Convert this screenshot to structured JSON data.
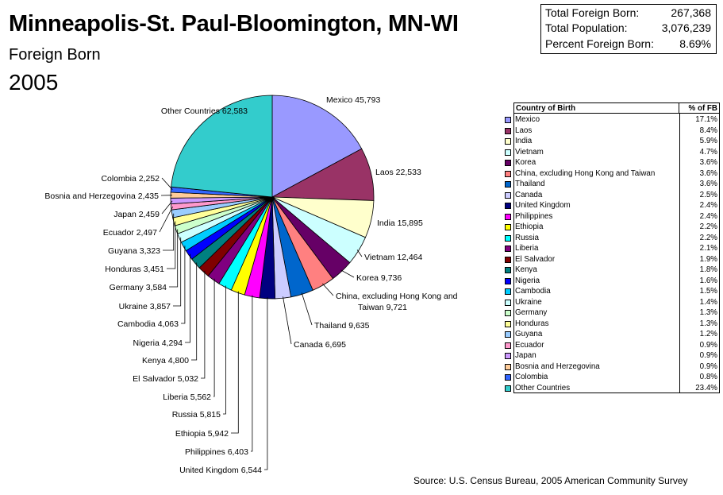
{
  "header": {
    "title": "Minneapolis-St. Paul-Bloomington, MN-WI",
    "subtitle": "Foreign Born",
    "year": "2005"
  },
  "stats": [
    {
      "label": "Total Foreign Born:",
      "value": "267,368"
    },
    {
      "label": "Total Population:",
      "value": "3,076,239"
    },
    {
      "label": "Percent Foreign Born:",
      "value": "8.69%"
    }
  ],
  "source": "Source: U.S. Census Bureau, 2005 American Community Survey",
  "table": {
    "col1": "Country of Birth",
    "col2": "% of FB",
    "rows": [
      {
        "name": "Mexico",
        "pct": "17.1%"
      },
      {
        "name": "Laos",
        "pct": "8.4%"
      },
      {
        "name": "India",
        "pct": "5.9%"
      },
      {
        "name": "Vietnam",
        "pct": "4.7%"
      },
      {
        "name": "Korea",
        "pct": "3.6%"
      },
      {
        "name": "China, excluding Hong Kong and Taiwan",
        "pct": "3.6%"
      },
      {
        "name": "Thailand",
        "pct": "3.6%"
      },
      {
        "name": "Canada",
        "pct": "2.5%"
      },
      {
        "name": "United Kingdom",
        "pct": "2.4%"
      },
      {
        "name": "Philippines",
        "pct": "2.4%"
      },
      {
        "name": "Ethiopia",
        "pct": "2.2%"
      },
      {
        "name": "Russia",
        "pct": "2.2%"
      },
      {
        "name": "Liberia",
        "pct": "2.1%"
      },
      {
        "name": "El Salvador",
        "pct": "1.9%"
      },
      {
        "name": "Kenya",
        "pct": "1.8%"
      },
      {
        "name": "Nigeria",
        "pct": "1.6%"
      },
      {
        "name": "Cambodia",
        "pct": "1.5%"
      },
      {
        "name": "Ukraine",
        "pct": "1.4%"
      },
      {
        "name": "Germany",
        "pct": "1.3%"
      },
      {
        "name": "Honduras",
        "pct": "1.3%"
      },
      {
        "name": "Guyana",
        "pct": "1.2%"
      },
      {
        "name": "Ecuador",
        "pct": "0.9%"
      },
      {
        "name": "Japan",
        "pct": "0.9%"
      },
      {
        "name": "Bosnia and Herzegovina",
        "pct": "0.9%"
      },
      {
        "name": "Colombia",
        "pct": "0.8%"
      },
      {
        "name": "Other Countries",
        "pct": "23.4%"
      }
    ]
  },
  "chart_data": {
    "type": "pie",
    "slices": [
      {
        "name": "Mexico",
        "value": 45793,
        "label": "Mexico 45,793",
        "color": "#9999ff"
      },
      {
        "name": "Laos",
        "value": 22533,
        "label": "Laos 22,533",
        "color": "#993366"
      },
      {
        "name": "India",
        "value": 15895,
        "label": "India 15,895",
        "color": "#ffffcc"
      },
      {
        "name": "Vietnam",
        "value": 12464,
        "label": "Vietnam 12,464",
        "color": "#ccffff"
      },
      {
        "name": "Korea",
        "value": 9736,
        "label": "Korea 9,736",
        "color": "#660066"
      },
      {
        "name": "China, excluding Hong Kong and Taiwan",
        "value": 9721,
        "label": "China, excluding Hong Kong and|Taiwan 9,721",
        "color": "#ff8080"
      },
      {
        "name": "Thailand",
        "value": 9635,
        "label": "Thailand 9,635",
        "color": "#0066cc"
      },
      {
        "name": "Canada",
        "value": 6695,
        "label": "Canada 6,695",
        "color": "#ccccff"
      },
      {
        "name": "United Kingdom",
        "value": 6544,
        "label": "United Kingdom 6,544",
        "color": "#000080"
      },
      {
        "name": "Philippines",
        "value": 6403,
        "label": "Philippines 6,403",
        "color": "#ff00ff"
      },
      {
        "name": "Ethiopia",
        "value": 5942,
        "label": "Ethiopia 5,942",
        "color": "#ffff00"
      },
      {
        "name": "Russia",
        "value": 5815,
        "label": "Russia 5,815",
        "color": "#00ffff"
      },
      {
        "name": "Liberia",
        "value": 5562,
        "label": "Liberia 5,562",
        "color": "#800080"
      },
      {
        "name": "El Salvador",
        "value": 5032,
        "label": "El Salvador 5,032",
        "color": "#800000"
      },
      {
        "name": "Kenya",
        "value": 4800,
        "label": "Kenya 4,800",
        "color": "#008080"
      },
      {
        "name": "Nigeria",
        "value": 4294,
        "label": "Nigeria 4,294",
        "color": "#0000ff"
      },
      {
        "name": "Cambodia",
        "value": 4063,
        "label": "Cambodia 4,063",
        "color": "#00ccff"
      },
      {
        "name": "Ukraine",
        "value": 3857,
        "label": "Ukraine 3,857",
        "color": "#ccffff"
      },
      {
        "name": "Germany",
        "value": 3584,
        "label": "Germany 3,584",
        "color": "#ccffcc"
      },
      {
        "name": "Honduras",
        "value": 3451,
        "label": "Honduras 3,451",
        "color": "#ffff99"
      },
      {
        "name": "Guyana",
        "value": 3323,
        "label": "Guyana 3,323",
        "color": "#99ccff"
      },
      {
        "name": "Ecuador",
        "value": 2497,
        "label": "Ecuador 2,497",
        "color": "#ff99cc"
      },
      {
        "name": "Japan",
        "value": 2459,
        "label": "Japan 2,459",
        "color": "#cc99ff"
      },
      {
        "name": "Bosnia and Herzegovina",
        "value": 2435,
        "label": "Bosnia and Herzegovina 2,435",
        "color": "#ffcc99"
      },
      {
        "name": "Colombia",
        "value": 2252,
        "label": "Colombia 2,252",
        "color": "#3366ff"
      },
      {
        "name": "Other Countries",
        "value": 62583,
        "label": "Other Countries 62,583",
        "color": "#33cccc"
      }
    ]
  }
}
